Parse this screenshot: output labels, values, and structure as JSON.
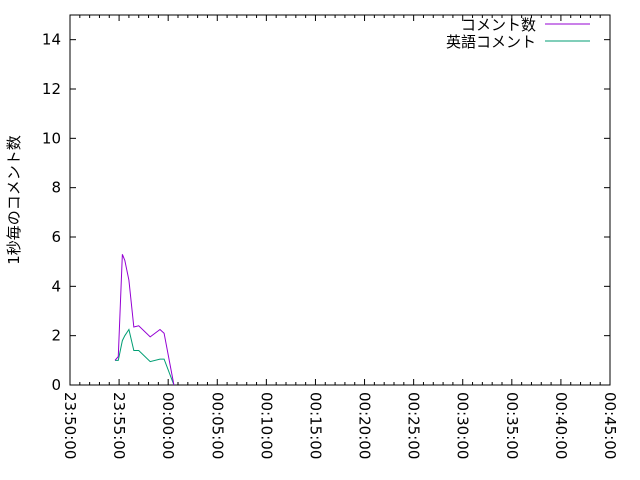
{
  "chart_data": {
    "type": "line",
    "title": "",
    "xlabel": "",
    "ylabel": "1秒毎のコメント数",
    "xlim": [
      "23:50:00",
      "00:45:00"
    ],
    "ylim": [
      0,
      15
    ],
    "x_ticks": [
      "23:50:00",
      "23:55:00",
      "00:00:00",
      "00:05:00",
      "00:10:00",
      "00:15:00",
      "00:20:00",
      "00:25:00",
      "00:30:00",
      "00:35:00",
      "00:40:00",
      "00:45:00"
    ],
    "y_ticks": [
      "0",
      "2",
      "4",
      "6",
      "8",
      "10",
      "12",
      "14"
    ],
    "grid": false,
    "legend_position": "top-right",
    "series": [
      {
        "name": "コメント数",
        "color": "#9400d3",
        "x": [
          "23:54:35",
          "23:54:55",
          "23:55:20",
          "23:55:35",
          "23:56:00",
          "23:56:30",
          "23:57:00",
          "23:58:10",
          "23:59:10",
          "23:59:35",
          "00:00:35"
        ],
        "values": [
          1.0,
          1.15,
          5.3,
          5.05,
          4.25,
          2.35,
          2.4,
          1.95,
          2.25,
          2.1,
          0
        ]
      },
      {
        "name": "英語コメント",
        "color": "#009e73",
        "x": [
          "23:54:35",
          "23:54:55",
          "23:55:20",
          "23:55:35",
          "23:56:00",
          "23:56:30",
          "23:57:00",
          "23:58:10",
          "23:59:10",
          "23:59:35",
          "00:00:35"
        ],
        "values": [
          1.0,
          1.0,
          1.8,
          2.0,
          2.25,
          1.4,
          1.4,
          0.95,
          1.05,
          1.05,
          0
        ]
      }
    ]
  }
}
